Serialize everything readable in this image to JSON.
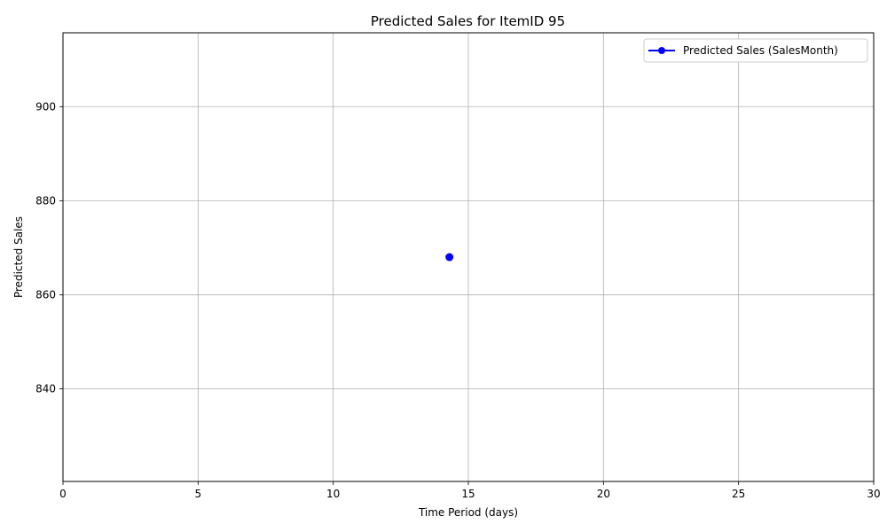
{
  "chart_data": {
    "type": "line",
    "title": "Predicted Sales for ItemID 95",
    "xlabel": "Time Period (days)",
    "ylabel": "Predicted Sales",
    "xlim": [
      0,
      30
    ],
    "ylim": [
      820.3,
      915.7
    ],
    "x_ticks": [
      0,
      5,
      10,
      15,
      20,
      25,
      30
    ],
    "y_ticks": [
      840,
      860,
      880,
      900
    ],
    "grid": true,
    "legend_position": "top-right",
    "series": [
      {
        "name": "Predicted Sales (SalesMonth)",
        "color": "#0000ff",
        "marker": "circle",
        "x": [
          14.3
        ],
        "y": [
          868
        ]
      }
    ]
  }
}
